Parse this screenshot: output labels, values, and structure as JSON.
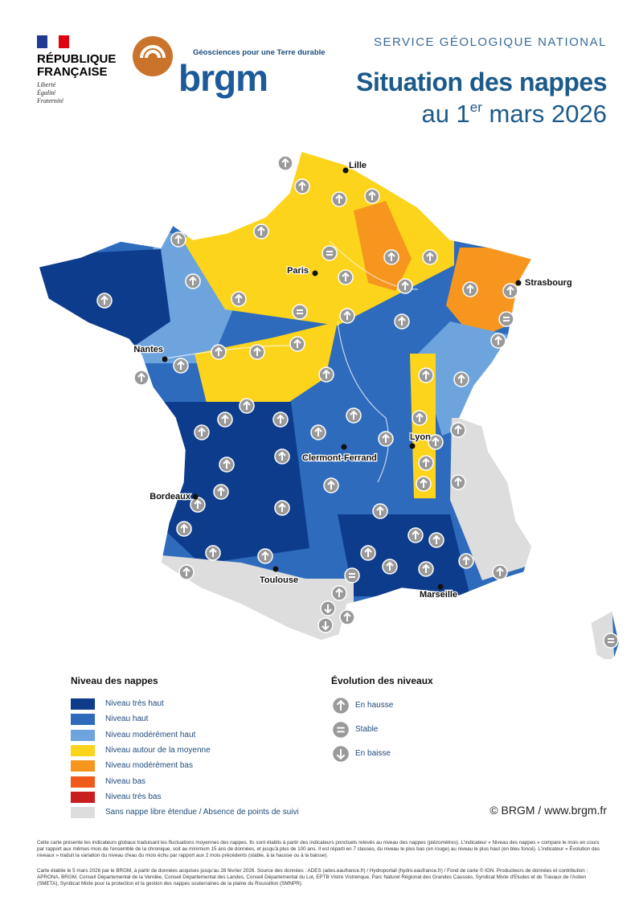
{
  "header": {
    "republique": [
      "RÉPUBLIQUE",
      "FRANÇAISE"
    ],
    "motto": [
      "Liberté",
      "Égalité",
      "Fraternité"
    ],
    "tagline": "Géosciences pour une Terre durable",
    "logo": "brgm",
    "service": "SERVICE GÉOLOGIQUE NATIONAL",
    "title": "Situation des nappes",
    "subtitle": {
      "before": "au 1",
      "sup": "er",
      "after": " mars 2026"
    }
  },
  "map": {
    "cities": [
      "Lille",
      "Paris",
      "Strasbourg",
      "Nantes",
      "Lyon",
      "Clermont-Ferrand",
      "Bordeaux",
      "Toulouse",
      "Marseille"
    ]
  },
  "legend": {
    "title": "Niveau des nappes",
    "items": [
      {
        "label": "Niveau très haut",
        "color": "#0e3c8c"
      },
      {
        "label": "Niveau haut",
        "color": "#2e6bbd"
      },
      {
        "label": "Niveau modérément haut",
        "color": "#6ea4de"
      },
      {
        "label": "Niveau autour de la moyenne",
        "color": "#fcd41c"
      },
      {
        "label": "Niveau modérément bas",
        "color": "#f7961e"
      },
      {
        "label": "Niveau bas",
        "color": "#f05a1a"
      },
      {
        "label": "Niveau très bas",
        "color": "#c81e1e"
      },
      {
        "label": "Sans nappe libre étendue / Absence de points de suivi",
        "color": "#dddddd"
      }
    ]
  },
  "evolution": {
    "title": "Évolution des niveaux",
    "items": [
      "En hausse",
      "Stable",
      "En baisse"
    ]
  },
  "copyright": "© BRGM / www.brgm.fr",
  "notes": [
    "Cette carte présente les indicateurs globaux traduisant les fluctuations moyennes des nappes. Ils sont établis à partir des indicateurs ponctuels relevés au niveau des nappes (piézomètres). L'indicateur « Niveau des nappes » compare le mois en cours par rapport aux mêmes mois de l'ensemble de la chronique, soit au minimum 15 ans de données, et jusqu'à plus de 100 ans. Il est réparti en 7 classes, du niveau le plus bas (en rouge) au niveau le plus haut (en bleu foncé). L'indicateur « Évolution des niveaux » traduit la variation du niveau d'eau du mois échu par rapport aux 2 mois précédents (stable, à la hausse ou à la baisse).",
    "Carte établie le 5 mars 2026 par le BRGM, à partir de données acquises jusqu'au 28 février 2026. Source des données : ADES (ades.eaufrance.fr) / Hydroportail (hydro.eaufrance.fr) / Fond de carte © IGN. Producteurs de données et contribution : APRONA, BRGM, Conseil Départemental de la Vendée, Conseil Départemental des Landes, Conseil Départemental du Lot, EPTB Vistre Vistrenque, Parc Naturel Régional des Grandes Causses, Syndicat Mixte d'Etudes et de Travaux de l'Astien (SMETA), Syndicat Mixte pour la protection et la gestion des nappes souterraines de la plaine du Roussillon (SMNPR)."
  ]
}
